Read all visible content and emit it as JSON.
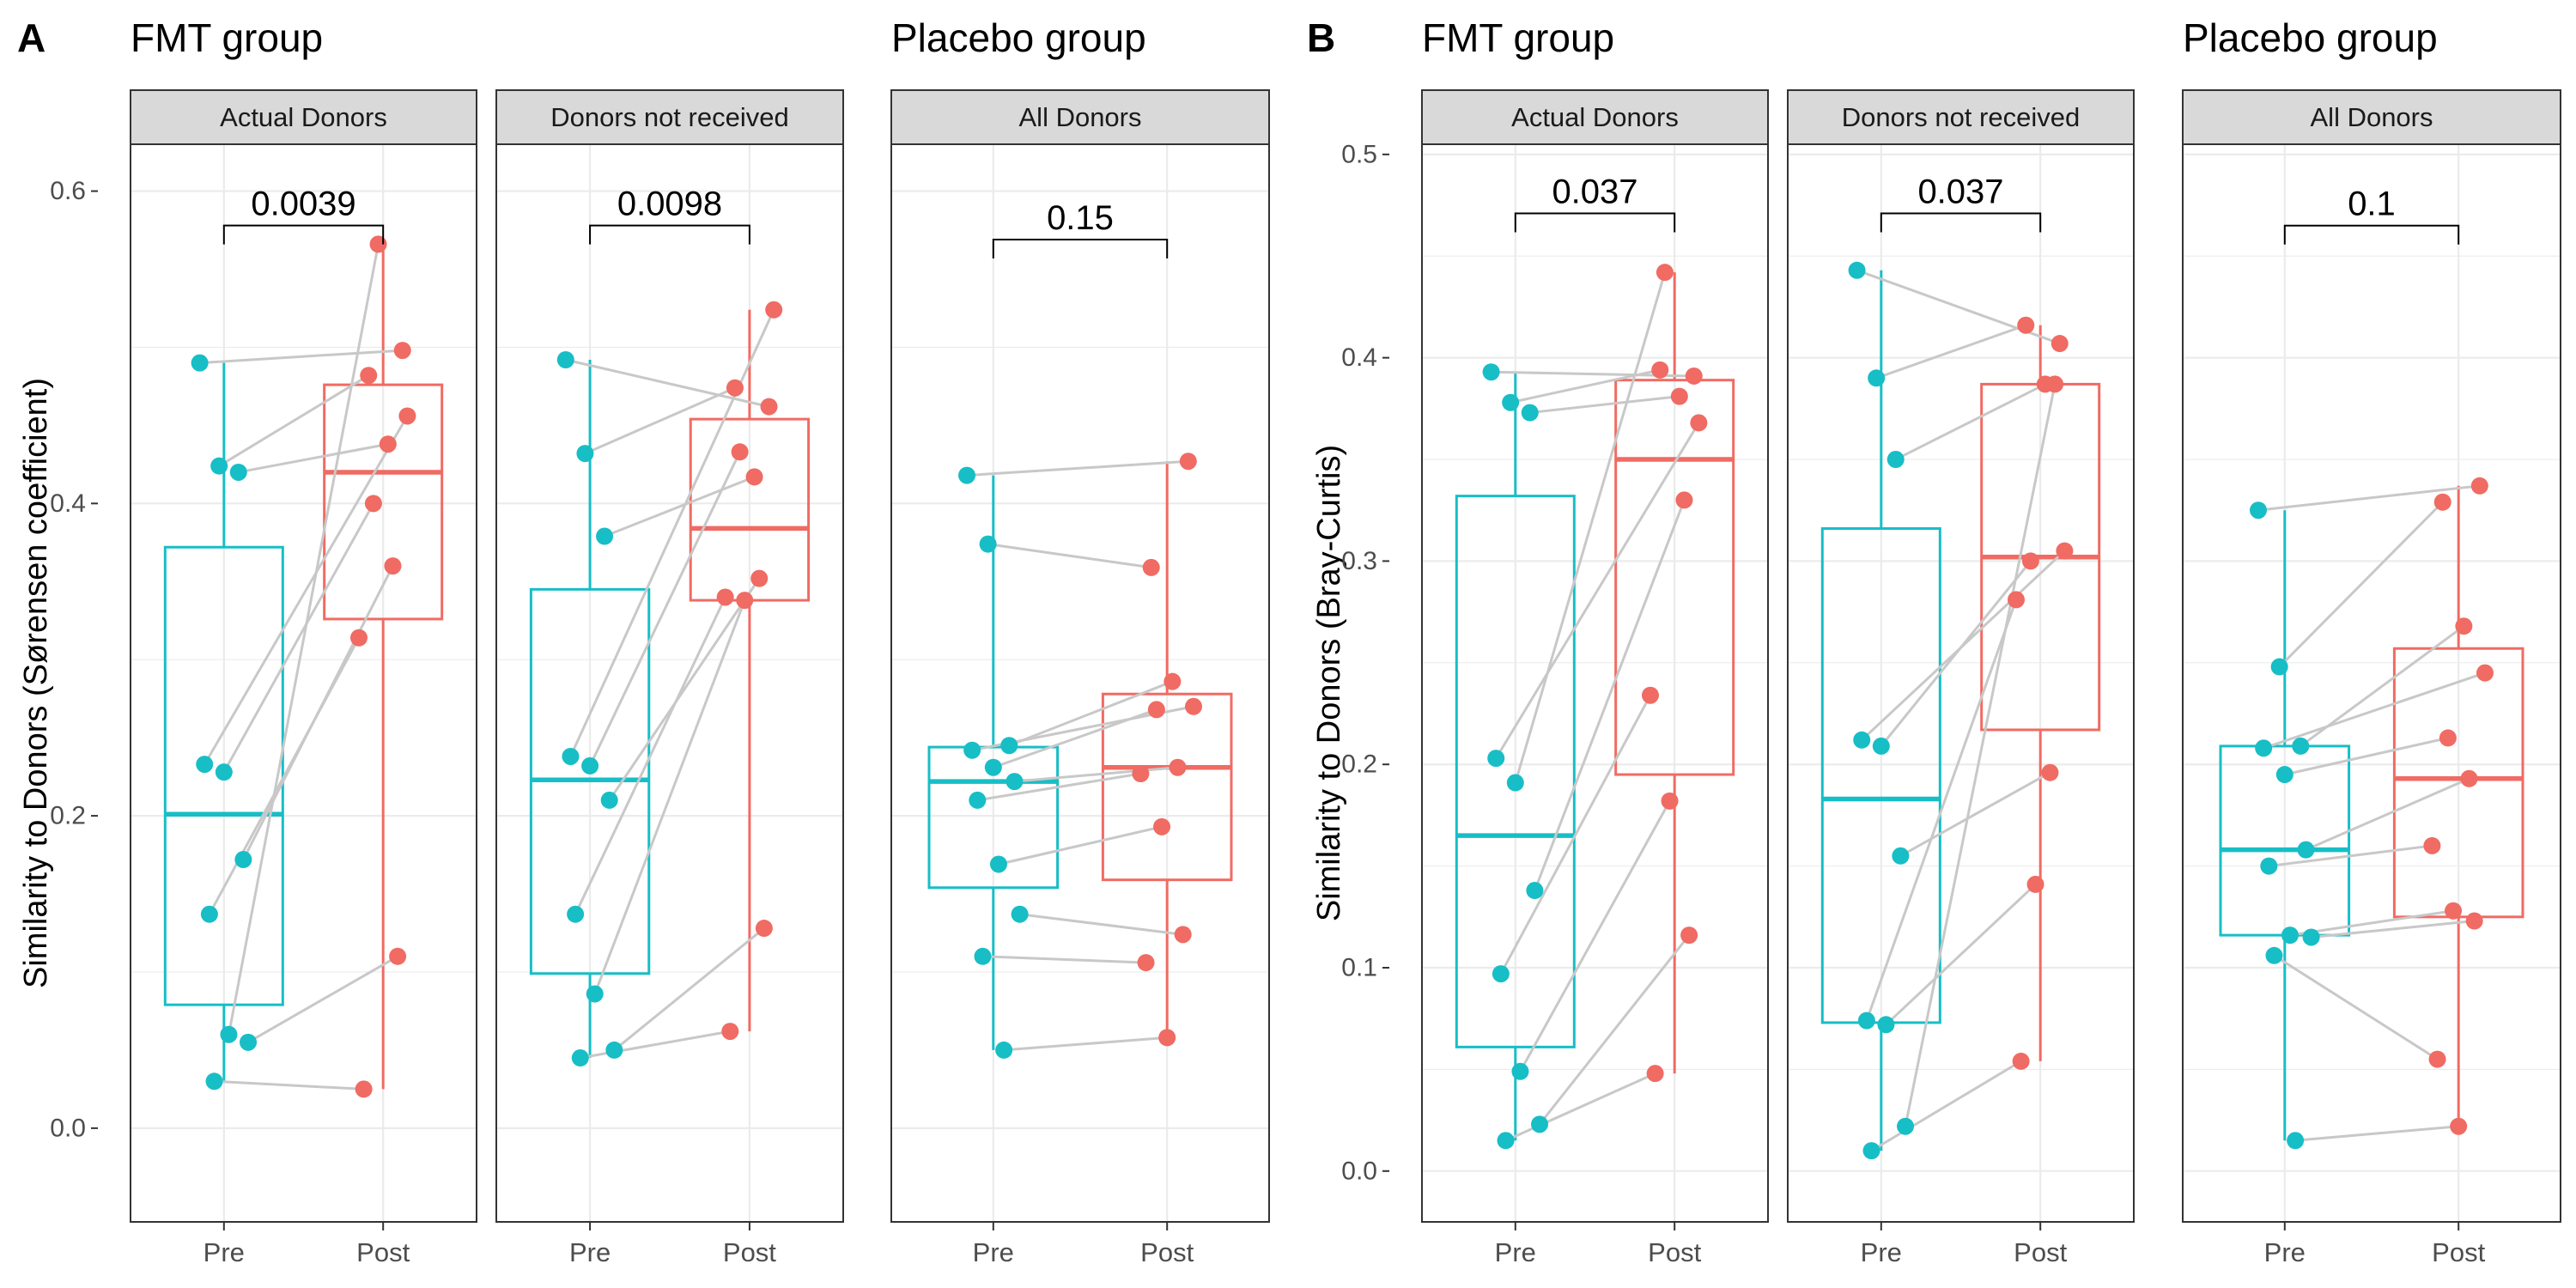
{
  "figure": {
    "colors": {
      "pre": "#17BEC6",
      "post": "#F06B63",
      "line": "#C8C8C8",
      "strip": "#D9D9D9",
      "grid": "#EBEBEB"
    },
    "panels": [
      {
        "letter": "A",
        "ylabel": "Similarity to Donors (Sørensen coefficient)",
        "ylim": [
          -0.06,
          0.63
        ],
        "yticks": [
          0.0,
          0.2,
          0.4,
          0.6
        ],
        "yticklabels": [
          "0.0",
          "0.2",
          "0.4",
          "0.6"
        ],
        "groups": [
          {
            "title": "FMT group",
            "facets": [
              0,
              1
            ]
          },
          {
            "title": "Placebo group",
            "facets": [
              2
            ]
          }
        ],
        "facets": [
          {
            "strip": "Actual Donors",
            "categories": [
              "Pre",
              "Post"
            ],
            "pvalue": "0.0039",
            "bracket_y": 0.578,
            "box_pre": {
              "min": 0.03,
              "q1": 0.079,
              "median": 0.201,
              "q3": 0.372,
              "max": 0.49
            },
            "box_post": {
              "min": 0.025,
              "q1": 0.326,
              "median": 0.42,
              "q3": 0.476,
              "max": 0.566
            },
            "pairs": [
              [
                0.49,
                0.498
              ],
              [
                0.424,
                0.482
              ],
              [
                0.42,
                0.438
              ],
              [
                0.233,
                0.456
              ],
              [
                0.228,
                0.4
              ],
              [
                0.172,
                0.36
              ],
              [
                0.137,
                0.314
              ],
              [
                0.06,
                0.566
              ],
              [
                0.055,
                0.11
              ],
              [
                0.03,
                0.025
              ]
            ]
          },
          {
            "strip": "Donors not received",
            "categories": [
              "Pre",
              "Post"
            ],
            "pvalue": "0.0098",
            "bracket_y": 0.578,
            "box_pre": {
              "min": 0.045,
              "q1": 0.099,
              "median": 0.223,
              "q3": 0.345,
              "max": 0.492
            },
            "box_post": {
              "min": 0.062,
              "q1": 0.338,
              "median": 0.384,
              "q3": 0.454,
              "max": 0.524
            },
            "pairs": [
              [
                0.492,
                0.462
              ],
              [
                0.432,
                0.474
              ],
              [
                0.379,
                0.417
              ],
              [
                0.238,
                0.524
              ],
              [
                0.232,
                0.433
              ],
              [
                0.21,
                0.352
              ],
              [
                0.137,
                0.34
              ],
              [
                0.086,
                0.338
              ],
              [
                0.05,
                0.128
              ],
              [
                0.045,
                0.062
              ]
            ]
          },
          {
            "strip": "All Donors",
            "categories": [
              "Pre",
              "Post"
            ],
            "pvalue": "0.15",
            "bracket_y": 0.569,
            "box_pre": {
              "min": 0.05,
              "q1": 0.154,
              "median": 0.222,
              "q3": 0.244,
              "max": 0.418
            },
            "box_post": {
              "min": 0.058,
              "q1": 0.159,
              "median": 0.231,
              "q3": 0.278,
              "max": 0.427
            },
            "pairs": [
              [
                0.418,
                0.427
              ],
              [
                0.374,
                0.359
              ],
              [
                0.245,
                0.286
              ],
              [
                0.242,
                0.27
              ],
              [
                0.231,
                0.268
              ],
              [
                0.222,
                0.231
              ],
              [
                0.21,
                0.227
              ],
              [
                0.169,
                0.193
              ],
              [
                0.137,
                0.124
              ],
              [
                0.11,
                0.106
              ],
              [
                0.05,
                0.058
              ]
            ]
          }
        ]
      },
      {
        "letter": "B",
        "ylabel": "Similarity to Donors (Bray-Curtis)",
        "ylim": [
          -0.025,
          0.505
        ],
        "yticks": [
          0.0,
          0.1,
          0.2,
          0.3,
          0.4,
          0.5
        ],
        "yticklabels": [
          "0.0",
          "0.1",
          "0.2",
          "0.3",
          "0.4",
          "0.5"
        ],
        "groups": [
          {
            "title": "FMT group",
            "facets": [
              0,
              1
            ]
          },
          {
            "title": "Placebo group",
            "facets": [
              2
            ]
          }
        ],
        "facets": [
          {
            "strip": "Actual Donors",
            "categories": [
              "Pre",
              "Post"
            ],
            "pvalue": "0.037",
            "bracket_y": 0.471,
            "box_pre": {
              "min": 0.015,
              "q1": 0.061,
              "median": 0.165,
              "q3": 0.332,
              "max": 0.393
            },
            "box_post": {
              "min": 0.048,
              "q1": 0.195,
              "median": 0.35,
              "q3": 0.389,
              "max": 0.442
            },
            "pairs": [
              [
                0.393,
                0.391
              ],
              [
                0.378,
                0.394
              ],
              [
                0.373,
                0.381
              ],
              [
                0.203,
                0.368
              ],
              [
                0.191,
                0.442
              ],
              [
                0.138,
                0.33
              ],
              [
                0.097,
                0.234
              ],
              [
                0.049,
                0.182
              ],
              [
                0.023,
                0.116
              ],
              [
                0.015,
                0.048
              ]
            ]
          },
          {
            "strip": "Donors not received",
            "categories": [
              "Pre",
              "Post"
            ],
            "pvalue": "0.037",
            "bracket_y": 0.471,
            "box_pre": {
              "min": 0.01,
              "q1": 0.073,
              "median": 0.183,
              "q3": 0.316,
              "max": 0.443
            },
            "box_post": {
              "min": 0.054,
              "q1": 0.217,
              "median": 0.302,
              "q3": 0.387,
              "max": 0.416
            },
            "pairs": [
              [
                0.443,
                0.407
              ],
              [
                0.39,
                0.416
              ],
              [
                0.35,
                0.387
              ],
              [
                0.212,
                0.305
              ],
              [
                0.209,
                0.3
              ],
              [
                0.155,
                0.196
              ],
              [
                0.074,
                0.281
              ],
              [
                0.072,
                0.141
              ],
              [
                0.022,
                0.387
              ],
              [
                0.01,
                0.054
              ]
            ]
          },
          {
            "strip": "All Donors",
            "categories": [
              "Pre",
              "Post"
            ],
            "pvalue": "0.1",
            "bracket_y": 0.465,
            "box_pre": {
              "min": 0.015,
              "q1": 0.116,
              "median": 0.158,
              "q3": 0.209,
              "max": 0.325
            },
            "box_post": {
              "min": 0.022,
              "q1": 0.125,
              "median": 0.193,
              "q3": 0.257,
              "max": 0.337
            },
            "pairs": [
              [
                0.325,
                0.337
              ],
              [
                0.248,
                0.329
              ],
              [
                0.209,
                0.268
              ],
              [
                0.208,
                0.245
              ],
              [
                0.195,
                0.213
              ],
              [
                0.158,
                0.193
              ],
              [
                0.15,
                0.16
              ],
              [
                0.116,
                0.128
              ],
              [
                0.115,
                0.123
              ],
              [
                0.106,
                0.055
              ],
              [
                0.015,
                0.022
              ]
            ]
          }
        ]
      }
    ]
  },
  "chart_data": [
    {
      "type": "box",
      "panel": "A",
      "ylabel": "Similarity to Donors (Sørensen coefficient)",
      "ylim": [
        -0.06,
        0.63
      ],
      "facets": [
        {
          "group": "FMT group",
          "strip": "Actual Donors",
          "categories": [
            "Pre",
            "Post"
          ],
          "pvalue": "0.0039",
          "pre": [
            0.49,
            0.424,
            0.42,
            0.233,
            0.228,
            0.172,
            0.137,
            0.06,
            0.055,
            0.03
          ],
          "post": [
            0.498,
            0.482,
            0.438,
            0.456,
            0.4,
            0.36,
            0.314,
            0.566,
            0.11,
            0.025
          ]
        },
        {
          "group": "FMT group",
          "strip": "Donors not received",
          "categories": [
            "Pre",
            "Post"
          ],
          "pvalue": "0.0098",
          "pre": [
            0.492,
            0.432,
            0.379,
            0.238,
            0.232,
            0.21,
            0.137,
            0.086,
            0.05,
            0.045
          ],
          "post": [
            0.462,
            0.474,
            0.417,
            0.524,
            0.433,
            0.352,
            0.34,
            0.338,
            0.128,
            0.062
          ]
        },
        {
          "group": "Placebo group",
          "strip": "All Donors",
          "categories": [
            "Pre",
            "Post"
          ],
          "pvalue": "0.15",
          "pre": [
            0.418,
            0.374,
            0.245,
            0.242,
            0.231,
            0.222,
            0.21,
            0.169,
            0.137,
            0.11,
            0.05
          ],
          "post": [
            0.427,
            0.359,
            0.286,
            0.27,
            0.268,
            0.231,
            0.227,
            0.193,
            0.124,
            0.106,
            0.058
          ]
        }
      ]
    },
    {
      "type": "box",
      "panel": "B",
      "ylabel": "Similarity to Donors (Bray-Curtis)",
      "ylim": [
        -0.025,
        0.505
      ],
      "facets": [
        {
          "group": "FMT group",
          "strip": "Actual Donors",
          "categories": [
            "Pre",
            "Post"
          ],
          "pvalue": "0.037",
          "pre": [
            0.393,
            0.378,
            0.373,
            0.203,
            0.191,
            0.138,
            0.097,
            0.049,
            0.023,
            0.015
          ],
          "post": [
            0.391,
            0.394,
            0.381,
            0.368,
            0.442,
            0.33,
            0.234,
            0.182,
            0.116,
            0.048
          ]
        },
        {
          "group": "FMT group",
          "strip": "Donors not received",
          "categories": [
            "Pre",
            "Post"
          ],
          "pvalue": "0.037",
          "pre": [
            0.443,
            0.39,
            0.35,
            0.212,
            0.209,
            0.155,
            0.074,
            0.072,
            0.022,
            0.01
          ],
          "post": [
            0.407,
            0.416,
            0.387,
            0.305,
            0.3,
            0.196,
            0.281,
            0.141,
            0.387,
            0.054
          ]
        },
        {
          "group": "Placebo group",
          "strip": "All Donors",
          "categories": [
            "Pre",
            "Post"
          ],
          "pvalue": "0.1",
          "pre": [
            0.325,
            0.248,
            0.209,
            0.208,
            0.195,
            0.158,
            0.15,
            0.116,
            0.115,
            0.106,
            0.015
          ],
          "post": [
            0.337,
            0.329,
            0.268,
            0.245,
            0.213,
            0.193,
            0.16,
            0.128,
            0.123,
            0.055,
            0.022
          ]
        }
      ]
    }
  ]
}
